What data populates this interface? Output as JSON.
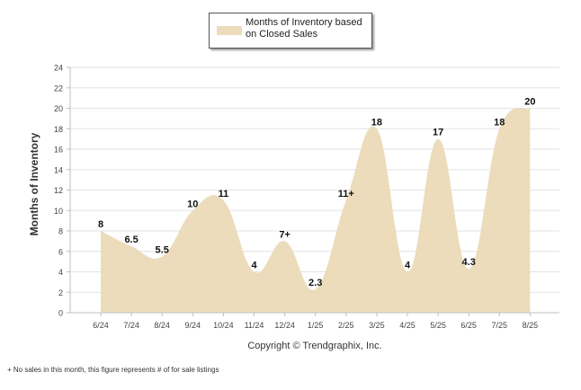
{
  "chart_data": {
    "type": "area",
    "categories": [
      "6/24",
      "7/24",
      "8/24",
      "9/24",
      "10/24",
      "11/24",
      "12/24",
      "1/25",
      "2/25",
      "3/25",
      "4/25",
      "5/25",
      "6/25",
      "7/25",
      "8/25"
    ],
    "series": [
      {
        "name": "Months of Inventory based on Closed Sales",
        "values": [
          8,
          6.5,
          5.5,
          10,
          11,
          4,
          7,
          2.3,
          11,
          18,
          4,
          17,
          4.3,
          18,
          20
        ],
        "data_labels": [
          "8",
          "6.5",
          "5.5",
          "10",
          "11",
          "4",
          "7+",
          "2.3",
          "11+",
          "18",
          "4",
          "17",
          "4.3",
          "18",
          "20"
        ]
      }
    ],
    "ylabel": "Months of Inventory",
    "xlabel": "",
    "ylim": [
      0,
      24
    ],
    "yticks": [
      0,
      2,
      4,
      6,
      8,
      10,
      12,
      14,
      16,
      18,
      20,
      22,
      24
    ],
    "grid": true,
    "legend_position": "top-center"
  },
  "colors": {
    "fill": "#ecdcbc",
    "grid": "#e3e3e3",
    "axis": "#bfbfbf",
    "tick_text": "#444444",
    "label_text": "#111111"
  },
  "copyright": "Copyright © Trendgraphix, Inc.",
  "footnote": "+  No sales in this month, this figure represents # of for sale listings"
}
